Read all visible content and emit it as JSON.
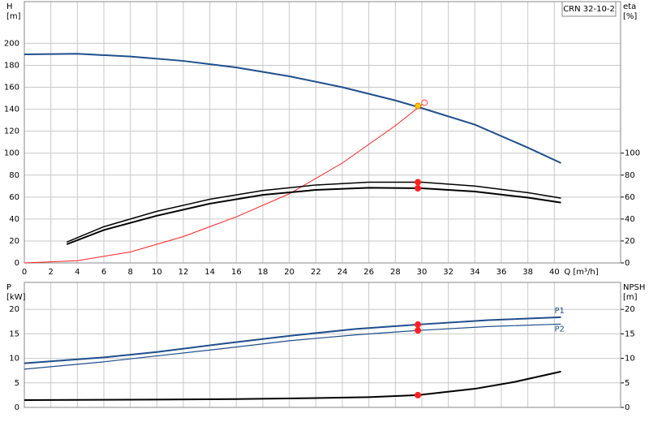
{
  "chart_data": [
    {
      "type": "line",
      "ylabel": "H",
      "yunit": "[m]",
      "y2label": "eta",
      "y2unit": "[%]",
      "xlabel": "Q [m³/h]",
      "annotation": "CRN 32-10-2",
      "grid": true,
      "xtick_labels": true,
      "xlim": [
        0,
        45
      ],
      "xticks": [
        0,
        2,
        4,
        6,
        8,
        10,
        12,
        14,
        16,
        18,
        20,
        22,
        24,
        26,
        28,
        30,
        32,
        34,
        36,
        38,
        40
      ],
      "ylim": [
        0,
        238
      ],
      "yticks": [
        0,
        20,
        40,
        60,
        80,
        100,
        120,
        140,
        160,
        180,
        200
      ],
      "y2lim": [
        0,
        238
      ],
      "y2ticks": [
        0,
        20,
        40,
        60,
        80,
        100
      ],
      "series": [
        {
          "color": "#1f4e8c",
          "width": 2,
          "x": [
            0,
            4,
            8,
            12,
            16,
            20,
            24,
            28,
            30,
            34,
            38,
            40.5
          ],
          "values": [
            190,
            190.5,
            188,
            184,
            178,
            170,
            160,
            148,
            141,
            126,
            105,
            91
          ]
        },
        {
          "color": "#ff2020",
          "width": 1,
          "x": [
            0,
            4,
            8,
            12,
            16,
            20,
            24,
            28,
            30.2
          ],
          "values": [
            0,
            2,
            10,
            24,
            42,
            63,
            91,
            125,
            146
          ]
        },
        {
          "color": "#000000",
          "width": 1.5,
          "axis": "y2",
          "x": [
            3.2,
            6,
            10,
            14,
            18,
            22,
            26,
            30,
            34,
            38,
            40.5
          ],
          "values": [
            19,
            33,
            47,
            58,
            66,
            71,
            73.5,
            73.5,
            70,
            64,
            59
          ]
        },
        {
          "color": "#000000",
          "width": 2,
          "axis": "y2",
          "x": [
            3.2,
            6,
            10,
            14,
            18,
            22,
            26,
            30,
            34,
            38,
            40.5
          ],
          "values": [
            17,
            30,
            43,
            54,
            62,
            66.5,
            68.5,
            68,
            65,
            59.5,
            55
          ]
        },
        {
          "marker": "hollow",
          "color": "#ff4040",
          "x": [
            30.2
          ],
          "values": [
            146
          ]
        },
        {
          "marker": "dot",
          "color": "#ffcc00",
          "x": [
            29.7
          ],
          "values": [
            143
          ]
        },
        {
          "marker": "dot",
          "color": "#ff2020",
          "axis": "y2",
          "x": [
            29.7,
            29.7
          ],
          "values": [
            73.5,
            68
          ]
        }
      ]
    },
    {
      "type": "line",
      "ylabel": "P",
      "yunit": "[kW]",
      "y2label": "NPSH",
      "y2unit": "[m]",
      "grid": true,
      "xtick_labels": false,
      "xlim": [
        0,
        45
      ],
      "xticks": [
        0,
        2,
        4,
        6,
        8,
        10,
        12,
        14,
        16,
        18,
        20,
        22,
        24,
        26,
        28,
        30,
        32,
        34,
        36,
        38,
        40
      ],
      "ylim": [
        0,
        25.5
      ],
      "yticks": [
        0,
        5,
        10,
        15,
        20
      ],
      "y2lim": [
        0,
        25.5
      ],
      "y2ticks": [
        0,
        5,
        10,
        15,
        20
      ],
      "series": [
        {
          "name": "P1",
          "color": "#1f4e8c",
          "width": 2,
          "x": [
            0,
            6,
            10,
            15,
            20,
            25,
            29.7,
            35,
            40.5
          ],
          "values": [
            9,
            10.2,
            11.3,
            13,
            14.6,
            16,
            16.9,
            17.8,
            18.4
          ]
        },
        {
          "name": "P2",
          "color": "#1f4e8c",
          "width": 1.2,
          "x": [
            0,
            6,
            10,
            15,
            20,
            25,
            29.7,
            35,
            40.5
          ],
          "values": [
            7.8,
            9.3,
            10.5,
            12,
            13.6,
            14.8,
            15.7,
            16.5,
            17
          ]
        },
        {
          "color": "#000000",
          "width": 2,
          "axis": "y2",
          "x": [
            0,
            10,
            16,
            22,
            26,
            29.7,
            34,
            37,
            40.5
          ],
          "values": [
            1.5,
            1.6,
            1.7,
            1.9,
            2.1,
            2.5,
            3.8,
            5.2,
            7.3
          ]
        },
        {
          "marker": "dot",
          "color": "#ff2020",
          "x": [
            29.7,
            29.7
          ],
          "values": [
            16.9,
            15.7
          ]
        },
        {
          "marker": "dot",
          "color": "#ff2020",
          "axis": "y2",
          "x": [
            29.7
          ],
          "values": [
            2.5
          ]
        }
      ]
    }
  ]
}
